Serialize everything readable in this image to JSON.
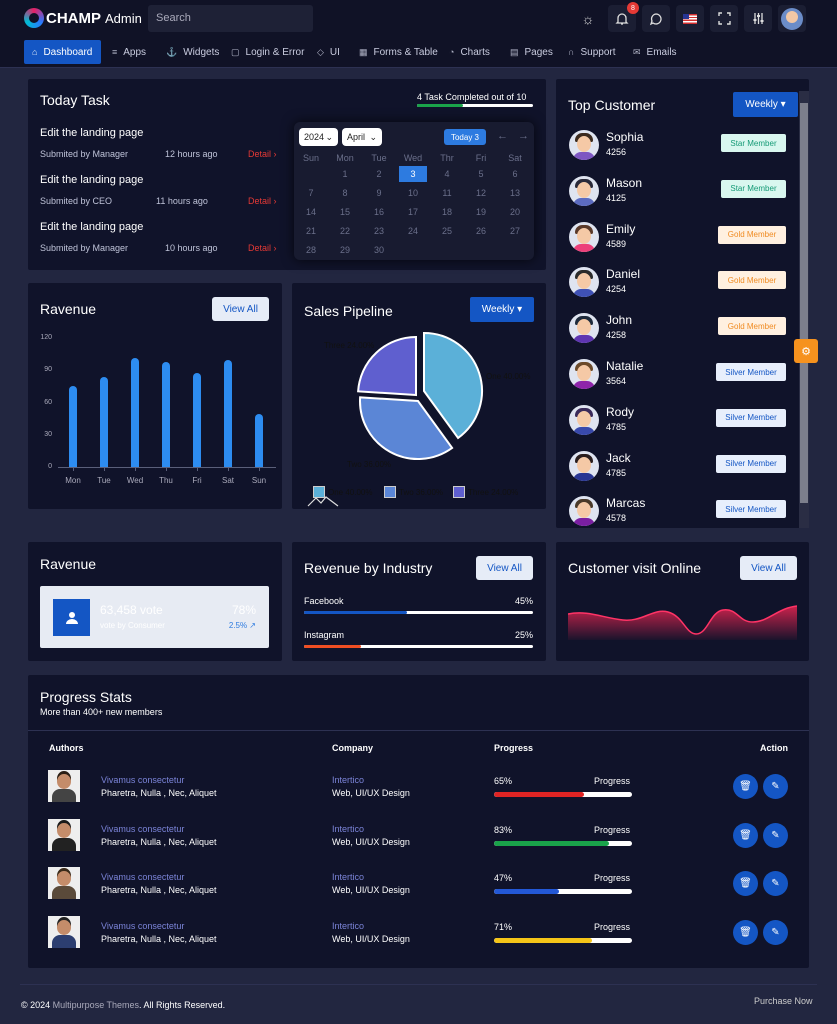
{
  "app": {
    "brand": "CHAMP",
    "brand_sub": "Admin"
  },
  "header": {
    "search_placeholder": "Search",
    "notification_count": "8"
  },
  "nav": {
    "items": [
      {
        "label": "Dashboard",
        "icon": "home-icon"
      },
      {
        "label": "Apps",
        "icon": "database-icon"
      },
      {
        "label": "Widgets",
        "icon": "anchor-icon"
      },
      {
        "label": "Login & Error",
        "icon": "lock-icon"
      },
      {
        "label": "UI",
        "icon": "box-icon"
      },
      {
        "label": "Forms & Table",
        "icon": "grid-icon"
      },
      {
        "label": "Charts",
        "icon": "clock-icon"
      },
      {
        "label": "Pages",
        "icon": "file-icon"
      },
      {
        "label": "Support",
        "icon": "headphones-icon"
      },
      {
        "label": "Emails",
        "icon": "mail-icon"
      }
    ]
  },
  "today_task": {
    "title": "Today Task",
    "progress_text": "4 Task Completed out of 10",
    "tasks": [
      {
        "title": "Edit the landing page",
        "sub": "Submited by Manager",
        "time": "12 hours ago",
        "detail": "Detail ›"
      },
      {
        "title": "Edit the landing page",
        "sub": "Submited by CEO",
        "time": "11 hours ago",
        "detail": "Detail ›"
      },
      {
        "title": "Edit the landing page",
        "sub": "Submited by Manager",
        "time": "10 hours ago",
        "detail": "Detail ›"
      }
    ],
    "calendar": {
      "year": "2024",
      "month": "April",
      "today_label": "Today 3",
      "days_head": [
        "Sun",
        "Mon",
        "Tue",
        "Wed",
        "Thr",
        "Fri",
        "Sat"
      ],
      "weeks": [
        [
          "",
          "1",
          "2",
          "3",
          "4",
          "5",
          "6"
        ],
        [
          "7",
          "8",
          "9",
          "10",
          "11",
          "12",
          "13"
        ],
        [
          "14",
          "15",
          "16",
          "17",
          "18",
          "19",
          "20"
        ],
        [
          "21",
          "22",
          "23",
          "24",
          "25",
          "26",
          "27"
        ],
        [
          "28",
          "29",
          "30",
          "",
          "",
          "",
          ""
        ]
      ],
      "selected_day": "3"
    }
  },
  "top_customer": {
    "title": "Top Customer",
    "filter": "Weekly ▾",
    "customers": [
      {
        "name": "Sophia",
        "id": "4256",
        "badge": "Star Member",
        "tier": "star"
      },
      {
        "name": "Mason",
        "id": "4125",
        "badge": "Star Member",
        "tier": "star"
      },
      {
        "name": "Emily",
        "id": "4589",
        "badge": "Gold Member",
        "tier": "gold"
      },
      {
        "name": "Daniel",
        "id": "4254",
        "badge": "Gold Member",
        "tier": "gold"
      },
      {
        "name": "John",
        "id": "4258",
        "badge": "Gold Member",
        "tier": "gold"
      },
      {
        "name": "Natalie",
        "id": "3564",
        "badge": "Silver Member",
        "tier": "silver"
      },
      {
        "name": "Rody",
        "id": "4785",
        "badge": "Silver Member",
        "tier": "silver"
      },
      {
        "name": "Jack",
        "id": "4785",
        "badge": "Silver Member",
        "tier": "silver"
      },
      {
        "name": "Marcas",
        "id": "4578",
        "badge": "Silver Member",
        "tier": "silver"
      }
    ]
  },
  "revenue_chart": {
    "title": "Ravenue",
    "button": "View All"
  },
  "sales_pipeline": {
    "title": "Sales Pipeline",
    "filter": "Weekly ▾",
    "slice_labels": [
      "One 40.00%",
      "Two 36.00%",
      "Three 24.00%"
    ],
    "legend": [
      "One 40.00%",
      "Two 36.00%",
      "Three 24.00%"
    ]
  },
  "chart_data": [
    {
      "type": "bar",
      "title": "Ravenue",
      "categories": [
        "Mon",
        "Tue",
        "Wed",
        "Thu",
        "Fri",
        "Sat",
        "Sun"
      ],
      "values": [
        75,
        84,
        101,
        98,
        87,
        100,
        49
      ],
      "ylim": [
        0,
        120
      ],
      "yticks": [
        "0",
        "30",
        "60",
        "90",
        "120"
      ],
      "color": "#2d8cf0"
    },
    {
      "type": "pie",
      "title": "Sales Pipeline",
      "categories": [
        "One",
        "Two",
        "Three"
      ],
      "values": [
        40,
        36,
        24
      ],
      "colors": [
        "#5bb0d8",
        "#5b86d6",
        "#5f5fcf"
      ]
    }
  ],
  "ravenue_vote": {
    "title": "Ravenue",
    "votes": "63,458 vote",
    "votes_sub": "vote by Consumer",
    "percent": "78%",
    "change": "2.5%"
  },
  "revenue_industry": {
    "title": "Revenue by Industry",
    "button": "View All",
    "rows": [
      {
        "label": "Facebook",
        "value": "45%",
        "frac": 0.45,
        "color": "#1456c4"
      },
      {
        "label": "Instagram",
        "value": "25%",
        "frac": 0.25,
        "color": "#f04e23"
      }
    ]
  },
  "customer_visit": {
    "title": "Customer visit Online",
    "button": "View All"
  },
  "progress_stats": {
    "title": "Progress Stats",
    "subtitle": "More than 400+ new members",
    "headers": {
      "authors": "Authors",
      "company": "Company",
      "progress": "Progress",
      "action": "Action"
    },
    "rows": [
      {
        "author_top": "Vivamus consectetur",
        "author_bot": "Pharetra, Nulla , Nec, Aliquet",
        "company": "Intertico",
        "company_sub": "Web, UI/UX Design",
        "pct": "65%",
        "word": "Progress",
        "frac": 0.65,
        "color": "#e02424"
      },
      {
        "author_top": "Vivamus consectetur",
        "author_bot": "Pharetra, Nulla , Nec, Aliquet",
        "company": "Intertico",
        "company_sub": "Web, UI/UX Design",
        "pct": "83%",
        "word": "Progress",
        "frac": 0.83,
        "color": "#1aa34a"
      },
      {
        "author_top": "Vivamus consectetur",
        "author_bot": "Pharetra, Nulla , Nec, Aliquet",
        "company": "Intertico",
        "company_sub": "Web, UI/UX Design",
        "pct": "47%",
        "word": "Progress",
        "frac": 0.47,
        "color": "#2358d6"
      },
      {
        "author_top": "Vivamus consectetur",
        "author_bot": "Pharetra, Nulla , Nec, Aliquet",
        "company": "Intertico",
        "company_sub": "Web, UI/UX Design",
        "pct": "71%",
        "word": "Progress",
        "frac": 0.71,
        "color": "#f5c518"
      }
    ]
  },
  "footer": {
    "year_text": "© 2024",
    "company": "Multipurpose Themes",
    "rights": ". All Rights Reserved.",
    "purchase": "Purchase Now"
  }
}
